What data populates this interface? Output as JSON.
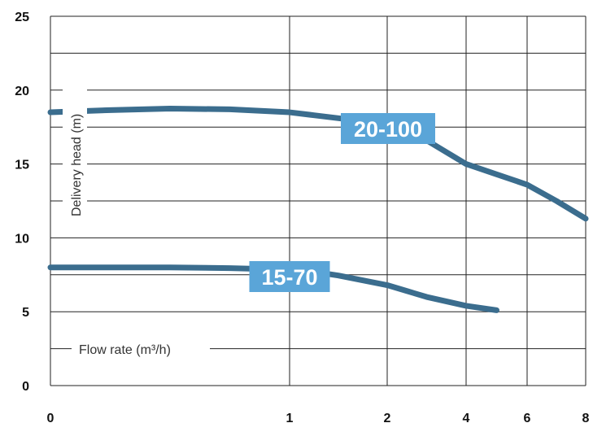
{
  "chart_data": {
    "type": "line",
    "title": "",
    "xlabel": "Flow rate (m³/h)",
    "ylabel": "Delivery head (m)",
    "x_ticks": [
      0,
      1,
      2,
      4,
      6,
      8
    ],
    "x_scale": "nonlinear",
    "y_ticks": [
      0,
      5,
      10,
      15,
      20,
      25
    ],
    "ylim": [
      0,
      25
    ],
    "grid": true,
    "legend": "none",
    "colors": {
      "line": "#3b6d8e",
      "label_bg": "#5aa5d8",
      "grid": "#222222"
    },
    "series": [
      {
        "name": "20-100",
        "x": [
          0,
          0.25,
          0.5,
          0.75,
          1,
          1.25,
          1.5,
          2,
          2.5,
          3,
          4,
          5,
          6,
          7,
          8
        ],
        "y": [
          18.5,
          18.65,
          18.75,
          18.7,
          18.5,
          18.3,
          18.1,
          17.7,
          17.2,
          16.6,
          15.0,
          14.3,
          13.6,
          12.5,
          11.3
        ],
        "label_at_x": 2
      },
      {
        "name": "15-70",
        "x": [
          0,
          0.25,
          0.5,
          0.75,
          1,
          1.25,
          1.5,
          2,
          2.5,
          3,
          4,
          5
        ],
        "y": [
          8.0,
          8.0,
          8.0,
          7.95,
          7.85,
          7.7,
          7.45,
          6.8,
          6.4,
          6.0,
          5.4,
          5.1
        ],
        "label_at_x": 1
      }
    ]
  }
}
